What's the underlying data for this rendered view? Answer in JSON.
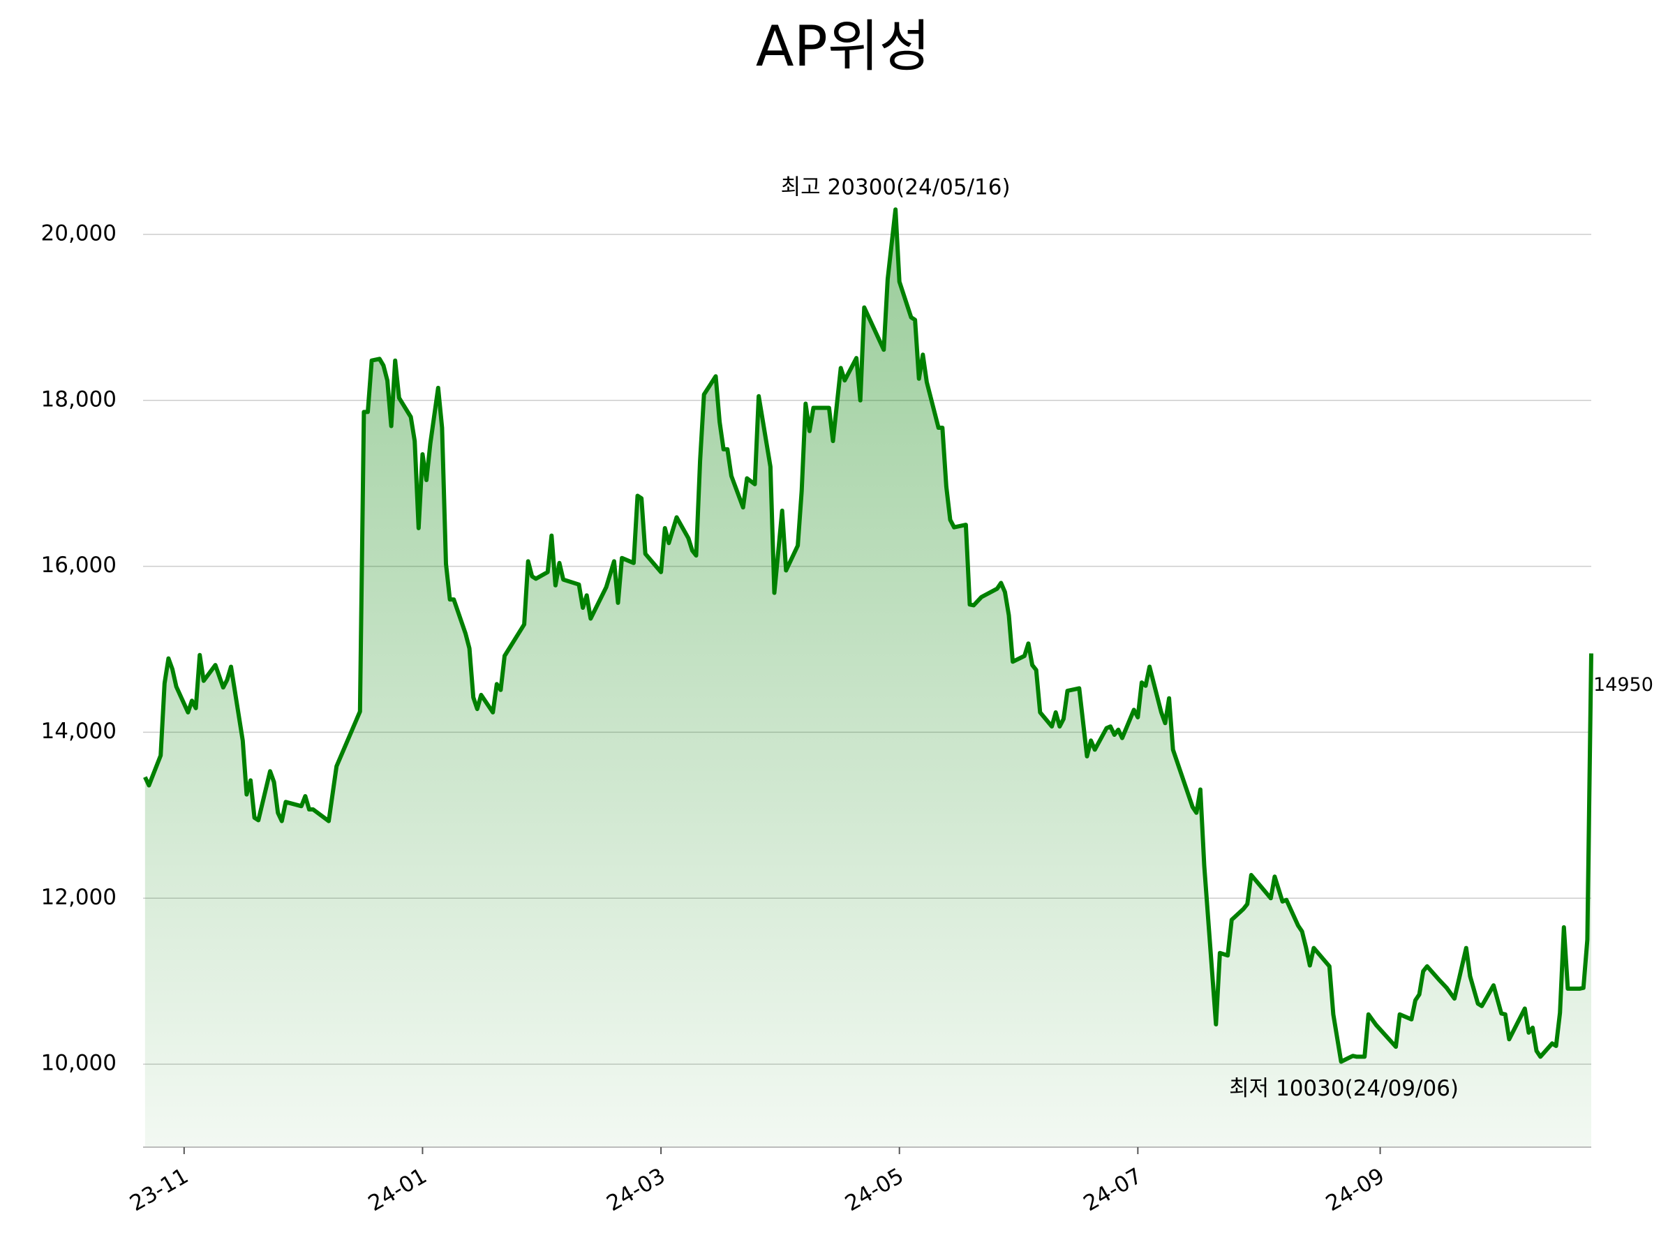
{
  "chart_data": {
    "type": "area",
    "title": "AP위성",
    "color": "#008000",
    "grid": true,
    "x": [
      0,
      1,
      4,
      5,
      6,
      7,
      8,
      11,
      12,
      13,
      14,
      15,
      18,
      20,
      21,
      22,
      25,
      26,
      27,
      28,
      29,
      32,
      33,
      34,
      35,
      36,
      40,
      41,
      42,
      43,
      47,
      49,
      55,
      56,
      57,
      58,
      60,
      61,
      62,
      63,
      64,
      65,
      68,
      69,
      70,
      71,
      72,
      73,
      75,
      76,
      77,
      78,
      79,
      82,
      83,
      84,
      85,
      86,
      89,
      90,
      91,
      92,
      97,
      98,
      99,
      100,
      103,
      104,
      105,
      106,
      107,
      111,
      112,
      113,
      114,
      118,
      120,
      121,
      122,
      125,
      126,
      127,
      128,
      132,
      133,
      134,
      136,
      139,
      140,
      141,
      142,
      143,
      146,
      147,
      148,
      149,
      150,
      153,
      154,
      156,
      157,
      160,
      161,
      163,
      164,
      167,
      168,
      169,
      170,
      171,
      175,
      176,
      178,
      179,
      182,
      183,
      184,
      189,
      190,
      192,
      193,
      196,
      197,
      198,
      199,
      200,
      203,
      204,
      205,
      206,
      207,
      210,
      211,
      212,
      214,
      218,
      219,
      220,
      221,
      222,
      225,
      226,
      227,
      228,
      229,
      232,
      233,
      234,
      235,
      236,
      239,
      241,
      242,
      243,
      246,
      247,
      248,
      249,
      250,
      253,
      254,
      255,
      256,
      257,
      260,
      261,
      262,
      263,
      268,
      269,
      270,
      271,
      274,
      275,
      277,
      278,
      281,
      282,
      283,
      288,
      289,
      291,
      292,
      295,
      296,
      297,
      298,
      299,
      303,
      304,
      306,
      309,
      310,
      312,
      313,
      315,
      320,
      321,
      324,
      325,
      326,
      327,
      328,
      331,
      333,
      335,
      338,
      339,
      341,
      342,
      345,
      347,
      348,
      349,
      353,
      354,
      355,
      356,
      357,
      360,
      361,
      362,
      363,
      364,
      367,
      368,
      369,
      370
    ],
    "values": [
      13460,
      13360,
      13720,
      14590,
      14890,
      14760,
      14550,
      14240,
      14380,
      14290,
      14930,
      14620,
      14810,
      14540,
      14630,
      14790,
      13900,
      13250,
      13420,
      12970,
      12940,
      13530,
      13400,
      13030,
      12930,
      13160,
      13110,
      13230,
      13070,
      13070,
      12930,
      13590,
      14250,
      17860,
      17860,
      18480,
      18500,
      18420,
      18240,
      17690,
      18480,
      18030,
      17800,
      17510,
      16460,
      17350,
      17040,
      17480,
      18150,
      17670,
      16030,
      15600,
      15600,
      15190,
      15010,
      14420,
      14280,
      14450,
      14240,
      14580,
      14510,
      14920,
      15300,
      16060,
      15880,
      15850,
      15930,
      16370,
      15770,
      16040,
      15840,
      15780,
      15500,
      15650,
      15370,
      15750,
      16060,
      15560,
      16100,
      16040,
      16850,
      16820,
      16150,
      15930,
      16460,
      16280,
      16590,
      16340,
      16190,
      16130,
      17270,
      18070,
      18290,
      17740,
      17410,
      17410,
      17090,
      16710,
      17060,
      16990,
      18050,
      17200,
      15680,
      16670,
      15950,
      16250,
      16910,
      17960,
      17630,
      17910,
      17910,
      17510,
      18390,
      18240,
      18510,
      18000,
      19120,
      18610,
      19460,
      20300,
      19430,
      19000,
      18970,
      18260,
      18550,
      18220,
      17670,
      17670,
      16960,
      16560,
      16470,
      16500,
      15540,
      15530,
      15630,
      15730,
      15800,
      15690,
      15410,
      14850,
      14920,
      15070,
      14810,
      14750,
      14240,
      14070,
      14240,
      14070,
      14160,
      14500,
      14530,
      13710,
      13900,
      13790,
      14050,
      14070,
      13970,
      14030,
      13930,
      14270,
      14180,
      14600,
      14560,
      14790,
      14240,
      14110,
      14410,
      13790,
      13100,
      13030,
      13310,
      12390,
      10480,
      11340,
      11310,
      11740,
      11870,
      11930,
      12280,
      12000,
      12260,
      11960,
      11980,
      11670,
      11600,
      11410,
      11190,
      11400,
      11180,
      10600,
      10030,
      10100,
      10090,
      10090,
      10600,
      10470,
      10210,
      10600,
      10540,
      10770,
      10840,
      11120,
      11180,
      11020,
      10920,
      10790,
      11400,
      11060,
      10730,
      10700,
      10950,
      10610,
      10600,
      10300,
      10670,
      10380,
      10440,
      10160,
      10090,
      10250,
      10220,
      10620,
      11650,
      10910,
      10910,
      10920,
      11500,
      14950
    ],
    "xlim": [
      -0.5,
      370
    ],
    "xticks": [
      {
        "value": 10,
        "label": "23-11"
      },
      {
        "value": 71,
        "label": "24-01"
      },
      {
        "value": 132,
        "label": "24-03"
      },
      {
        "value": 193,
        "label": "24-05"
      },
      {
        "value": 254,
        "label": "24-07"
      },
      {
        "value": 316,
        "label": "24-09"
      }
    ],
    "ylim": [
      9000,
      21000
    ],
    "yticks": [
      {
        "value": 10000,
        "label": "10,000"
      },
      {
        "value": 12000,
        "label": "12,000"
      },
      {
        "value": 14000,
        "label": "14,000"
      },
      {
        "value": 16000,
        "label": "16,000"
      },
      {
        "value": 18000,
        "label": "18,000"
      },
      {
        "value": 20000,
        "label": "20,000"
      }
    ],
    "annotations": {
      "high": {
        "text": "최고 20300(24/05/16)",
        "color": "#ff0000"
      },
      "low": {
        "text": "최저 10030(24/09/06)",
        "color": "#0000ff"
      },
      "last": {
        "text": "14950",
        "color": "#000000"
      }
    }
  }
}
